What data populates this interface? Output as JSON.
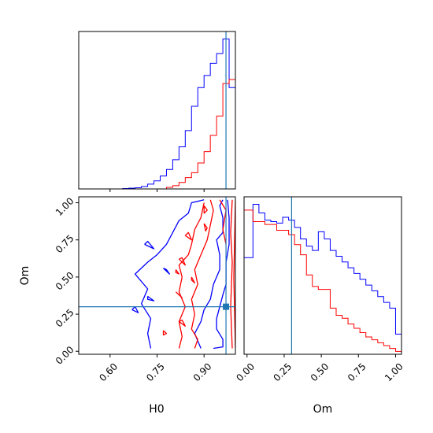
{
  "chart_data": [
    {
      "id": "h0-marginal",
      "type": "histogram",
      "xlim": [
        0.5,
        1.0
      ],
      "truth": 0.97,
      "series": [
        {
          "color": "#0000ff",
          "bin_edges": [
            0.5,
            0.52,
            0.54,
            0.56,
            0.58,
            0.6,
            0.62,
            0.64,
            0.66,
            0.68,
            0.7,
            0.72,
            0.74,
            0.76,
            0.78,
            0.8,
            0.82,
            0.84,
            0.86,
            0.88,
            0.9,
            0.92,
            0.94,
            0.96,
            0.98,
            1.0
          ],
          "counts": [
            0,
            0,
            0,
            0,
            0,
            0,
            0,
            0.5,
            1,
            1.5,
            3,
            6,
            10,
            16,
            24,
            36,
            52,
            72,
            102,
            125,
            140,
            155,
            167,
            185,
            125,
            25
          ]
        },
        {
          "color": "#ff0000",
          "bin_edges": [
            0.5,
            0.52,
            0.54,
            0.56,
            0.58,
            0.6,
            0.62,
            0.64,
            0.66,
            0.68,
            0.7,
            0.72,
            0.74,
            0.76,
            0.78,
            0.8,
            0.82,
            0.84,
            0.86,
            0.88,
            0.9,
            0.92,
            0.94,
            0.96,
            0.98,
            1.0
          ],
          "counts": [
            0,
            0,
            0,
            0,
            0,
            0,
            0,
            0,
            0,
            0,
            0,
            0,
            0,
            0,
            2,
            4,
            8,
            14,
            20,
            32,
            46,
            66,
            90,
            130,
            135,
            0
          ]
        }
      ]
    },
    {
      "id": "om-marginal",
      "type": "histogram",
      "xlim": [
        -0.02,
        1.04
      ],
      "xlabel": "Om",
      "xticks": [
        "0.00",
        "0.25",
        "0.50",
        "0.75",
        "1.00"
      ],
      "truth": 0.3,
      "series": [
        {
          "color": "#0000ff",
          "bin_edges": [
            -0.02,
            0.04,
            0.08,
            0.12,
            0.16,
            0.2,
            0.24,
            0.28,
            0.32,
            0.36,
            0.4,
            0.44,
            0.48,
            0.52,
            0.56,
            0.6,
            0.64,
            0.68,
            0.72,
            0.76,
            0.8,
            0.84,
            0.88,
            0.92,
            0.96,
            1.0,
            1.04
          ],
          "counts": [
            67,
            104,
            98,
            93,
            92,
            91,
            95,
            93,
            88,
            80,
            75,
            72,
            85,
            80,
            72,
            68,
            64,
            60,
            56,
            52,
            48,
            44,
            40,
            36,
            32,
            14
          ]
        },
        {
          "color": "#ff0000",
          "bin_edges": [
            -0.02,
            0.04,
            0.08,
            0.12,
            0.16,
            0.2,
            0.24,
            0.28,
            0.32,
            0.36,
            0.4,
            0.44,
            0.48,
            0.52,
            0.56,
            0.6,
            0.64,
            0.68,
            0.72,
            0.76,
            0.8,
            0.84,
            0.88,
            0.92,
            0.96,
            1.0,
            1.04
          ],
          "counts": [
            100,
            92,
            92,
            90,
            90,
            86,
            86,
            83,
            76,
            69,
            55,
            47,
            45,
            45,
            32,
            27,
            25,
            21,
            18,
            15,
            12,
            10,
            8,
            6,
            4,
            2
          ]
        }
      ]
    },
    {
      "id": "joint-h0-om",
      "type": "contour",
      "xlim": [
        0.5,
        1.0
      ],
      "ylim": [
        -0.02,
        1.04
      ],
      "xlabel": "H0",
      "ylabel": "Om",
      "xticks": [
        "0.60",
        "0.75",
        "0.90"
      ],
      "yticks": [
        "0.00",
        "0.25",
        "0.50",
        "0.75",
        "1.00"
      ],
      "truth": {
        "x": 0.97,
        "y": 0.3
      },
      "series": [
        {
          "color": "#0000ff",
          "contours": [
            [
              [
                0.9,
                1.02
              ],
              [
                0.86,
                1.0
              ],
              [
                0.85,
                0.93
              ],
              [
                0.82,
                0.88
              ],
              [
                0.8,
                0.8
              ],
              [
                0.78,
                0.72
              ],
              [
                0.75,
                0.65
              ],
              [
                0.72,
                0.6
              ],
              [
                0.68,
                0.52
              ],
              [
                0.72,
                0.42
              ],
              [
                0.7,
                0.32
              ],
              [
                0.73,
                0.22
              ],
              [
                0.72,
                0.12
              ],
              [
                0.73,
                0.02
              ]
            ],
            [
              [
                0.89,
                0.02
              ],
              [
                0.88,
                0.07
              ],
              [
                0.87,
                0.12
              ],
              [
                0.89,
                0.2
              ],
              [
                0.9,
                0.28
              ],
              [
                0.92,
                0.35
              ],
              [
                0.93,
                0.45
              ],
              [
                0.95,
                0.55
              ],
              [
                0.95,
                0.65
              ],
              [
                0.94,
                0.75
              ],
              [
                0.96,
                0.8
              ],
              [
                0.96,
                0.9
              ],
              [
                0.95,
                0.98
              ],
              [
                0.96,
                1.02
              ]
            ],
            [
              [
                0.93,
                0.02
              ],
              [
                0.96,
                0.03
              ],
              [
                0.96,
                0.08
              ],
              [
                0.94,
                0.15
              ],
              [
                0.94,
                0.22
              ],
              [
                0.95,
                0.3
              ],
              [
                0.96,
                0.38
              ],
              [
                0.97,
                0.45
              ],
              [
                0.97,
                0.6
              ],
              [
                0.98,
                0.72
              ],
              [
                0.98,
                0.9
              ],
              [
                0.975,
                1.02
              ]
            ],
            [
              [
                0.71,
                0.72
              ],
              [
                0.74,
                0.69
              ],
              [
                0.72,
                0.74
              ],
              [
                0.71,
                0.72
              ]
            ],
            [
              [
                0.77,
                0.56
              ],
              [
                0.79,
                0.52
              ],
              [
                0.78,
                0.55
              ],
              [
                0.77,
                0.56
              ]
            ],
            [
              [
                0.72,
                0.37
              ],
              [
                0.74,
                0.34
              ],
              [
                0.72,
                0.35
              ],
              [
                0.72,
                0.37
              ]
            ],
            [
              [
                0.67,
                0.28
              ],
              [
                0.69,
                0.26
              ],
              [
                0.68,
                0.3
              ],
              [
                0.67,
                0.28
              ]
            ]
          ]
        },
        {
          "color": "#ff0000",
          "contours": [
            [
              [
                0.92,
                1.02
              ],
              [
                0.93,
                0.95
              ],
              [
                0.92,
                0.85
              ],
              [
                0.91,
                0.75
              ],
              [
                0.89,
                0.65
              ],
              [
                0.87,
                0.55
              ],
              [
                0.88,
                0.45
              ],
              [
                0.86,
                0.35
              ],
              [
                0.87,
                0.25
              ],
              [
                0.86,
                0.15
              ],
              [
                0.88,
                0.08
              ],
              [
                0.87,
                0.02
              ]
            ],
            [
              [
                0.82,
                0.02
              ],
              [
                0.83,
                0.1
              ],
              [
                0.82,
                0.2
              ],
              [
                0.84,
                0.3
              ],
              [
                0.82,
                0.4
              ],
              [
                0.83,
                0.5
              ],
              [
                0.82,
                0.58
              ],
              [
                0.85,
                0.65
              ],
              [
                0.86,
                0.72
              ],
              [
                0.87,
                0.82
              ],
              [
                0.89,
                0.9
              ],
              [
                0.9,
                1.0
              ]
            ],
            [
              [
                0.99,
                0.02
              ],
              [
                0.985,
                0.3
              ],
              [
                0.99,
                0.6
              ],
              [
                0.985,
                0.8
              ],
              [
                0.99,
                1.02
              ]
            ],
            [
              [
                1.0,
                0.02
              ],
              [
                0.995,
                0.5
              ],
              [
                1.0,
                1.02
              ]
            ],
            [
              [
                0.95,
                1.02
              ],
              [
                0.97,
                0.95
              ],
              [
                0.96,
                0.82
              ],
              [
                0.97,
                0.72
              ]
            ],
            [
              [
                0.84,
                0.78
              ],
              [
                0.86,
                0.75
              ],
              [
                0.85,
                0.8
              ],
              [
                0.84,
                0.78
              ]
            ],
            [
              [
                0.82,
                0.62
              ],
              [
                0.84,
                0.58
              ],
              [
                0.83,
                0.63
              ],
              [
                0.82,
                0.62
              ]
            ],
            [
              [
                0.81,
                0.55
              ],
              [
                0.82,
                0.52
              ],
              [
                0.81,
                0.53
              ],
              [
                0.81,
                0.55
              ]
            ],
            [
              [
                0.86,
                0.5
              ],
              [
                0.87,
                0.46
              ],
              [
                0.86,
                0.48
              ],
              [
                0.86,
                0.5
              ]
            ],
            [
              [
                0.81,
                0.4
              ],
              [
                0.83,
                0.36
              ],
              [
                0.82,
                0.38
              ],
              [
                0.81,
                0.4
              ]
            ],
            [
              [
                0.82,
                0.2
              ],
              [
                0.84,
                0.17
              ],
              [
                0.83,
                0.21
              ],
              [
                0.82,
                0.2
              ]
            ],
            [
              [
                0.77,
                0.14
              ],
              [
                0.78,
                0.12
              ],
              [
                0.77,
                0.11
              ],
              [
                0.77,
                0.14
              ]
            ],
            [
              [
                0.9,
                0.98
              ],
              [
                0.91,
                0.95
              ],
              [
                0.9,
                0.93
              ],
              [
                0.9,
                0.98
              ]
            ],
            [
              [
                0.9,
                0.86
              ],
              [
                0.91,
                0.83
              ],
              [
                0.905,
                0.81
              ],
              [
                0.9,
                0.86
              ]
            ]
          ]
        }
      ]
    }
  ]
}
